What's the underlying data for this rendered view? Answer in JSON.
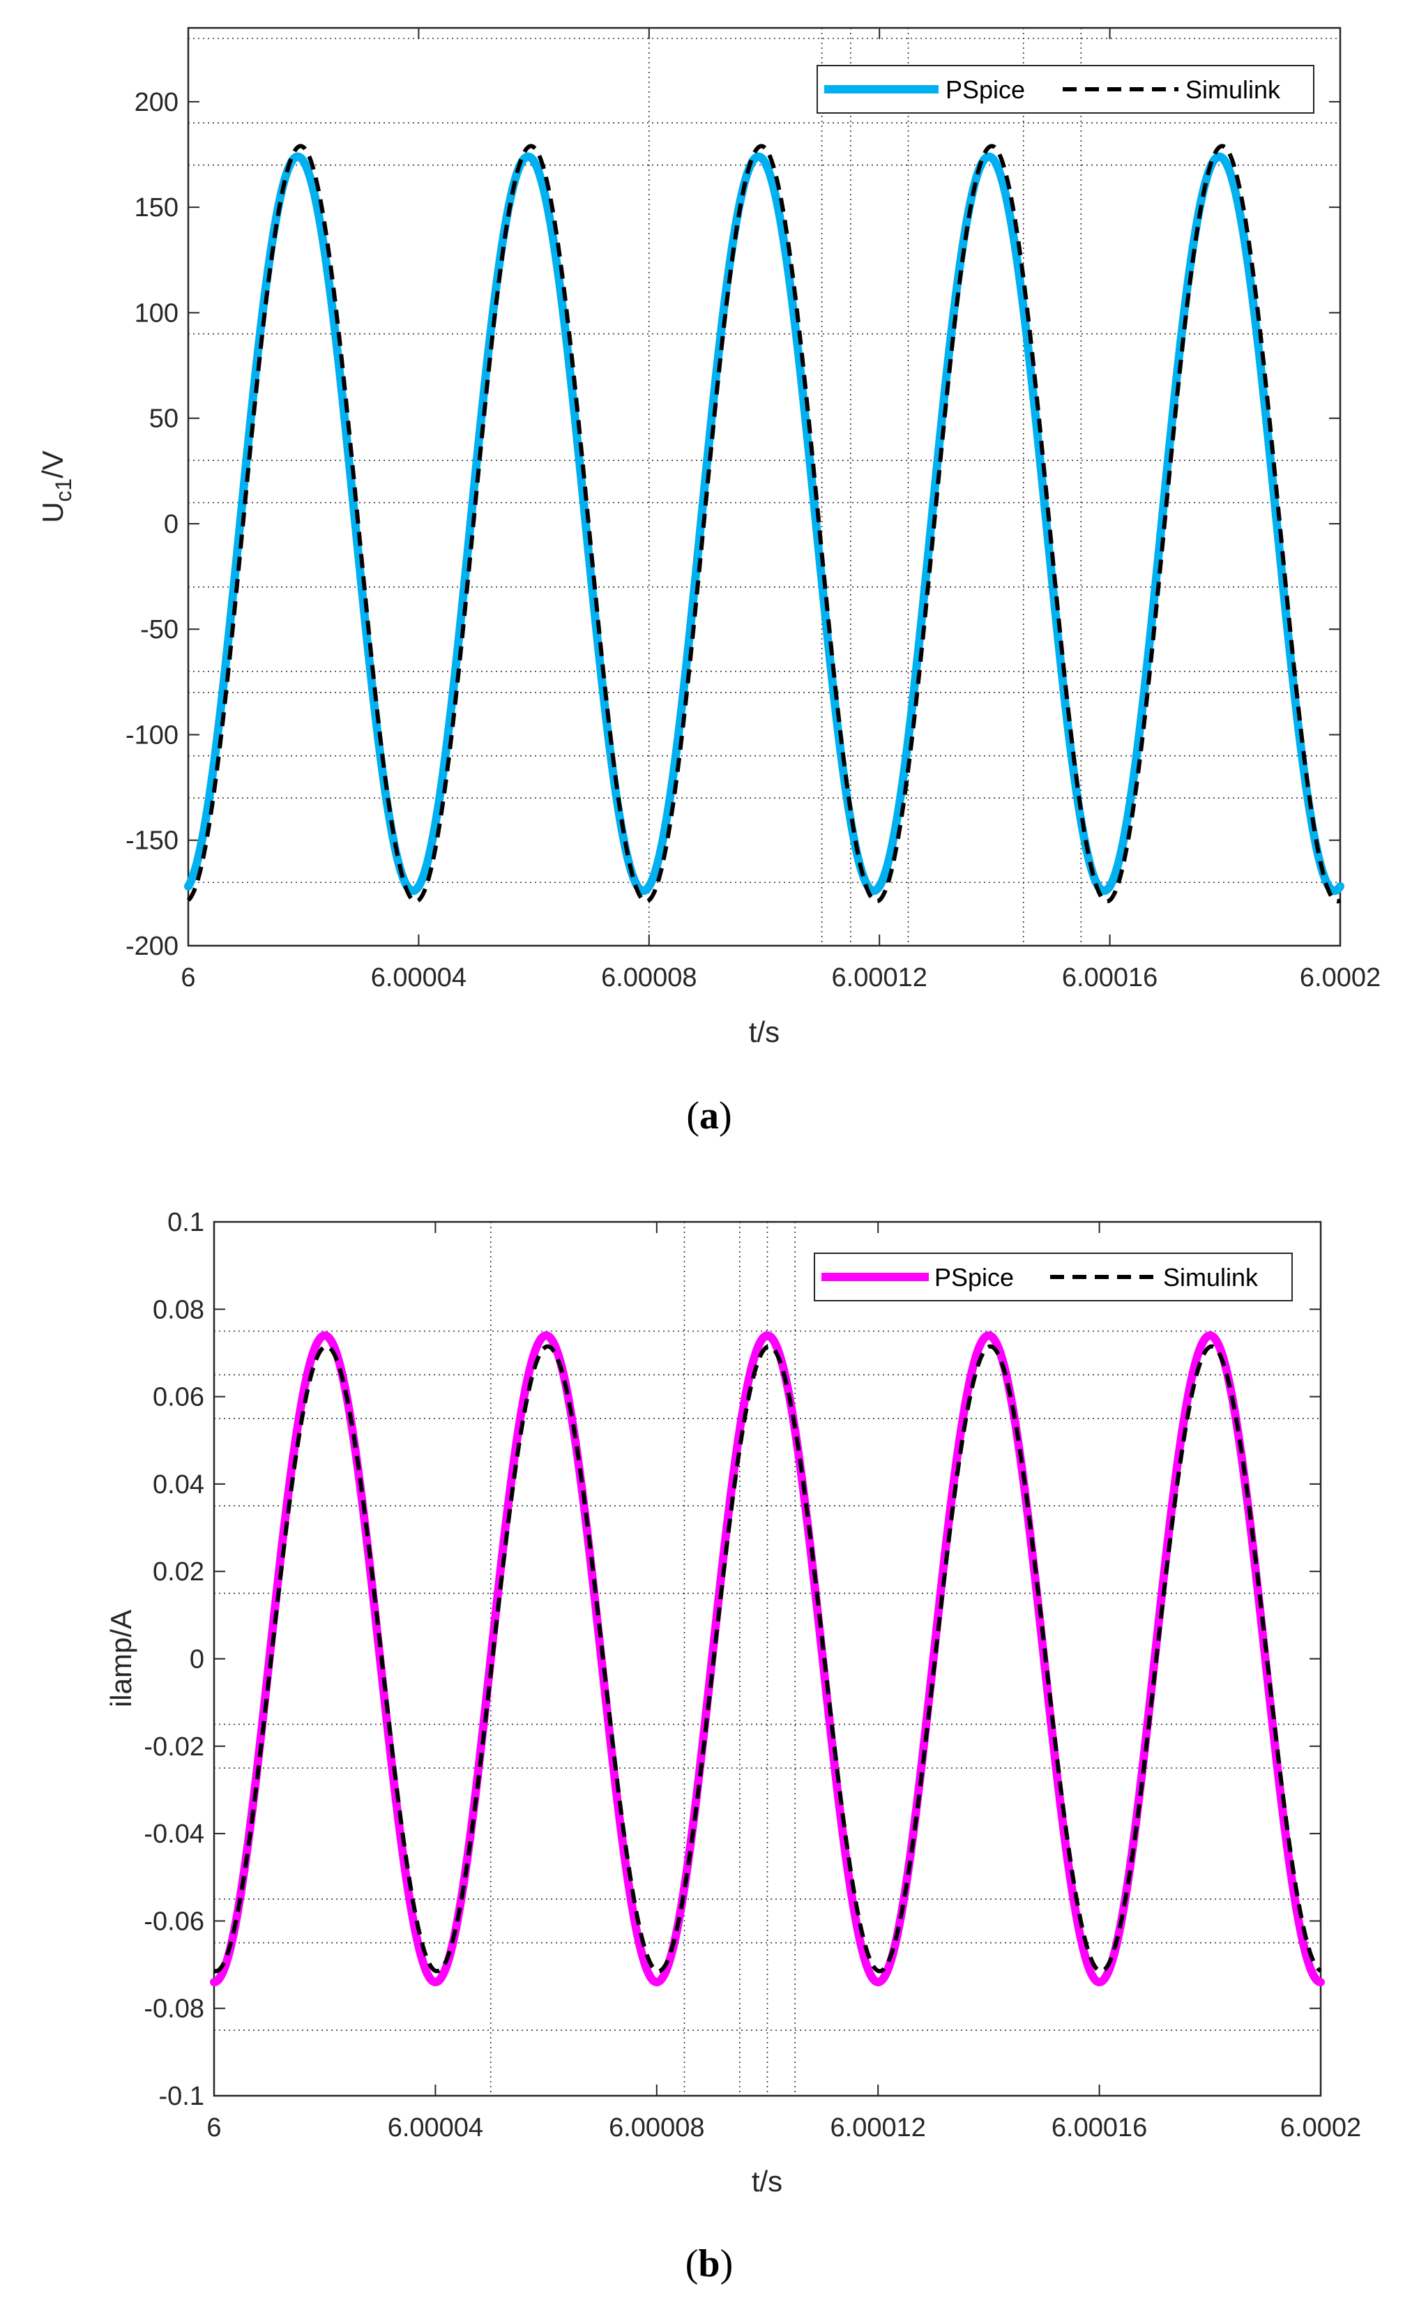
{
  "chart_data": [
    {
      "type": "line",
      "caption": "(a)",
      "caption_open": "(",
      "caption_letter": "a",
      "caption_close": ")",
      "xlabel": "t/s",
      "ylabel_main": "U",
      "ylabel_sub": "c1",
      "ylabel_tail": "/V",
      "xlim": [
        6.0,
        6.0002
      ],
      "ylim": [
        -200,
        235
      ],
      "xticks": [
        6.0,
        6.00004,
        6.00008,
        6.00012,
        6.00016,
        6.0002
      ],
      "xtick_labels": [
        "6",
        "6.00004",
        "6.00008",
        "6.00012",
        "6.00016",
        "6.0002"
      ],
      "yticks": [
        200,
        150,
        100,
        50,
        0,
        -50,
        -100,
        -150,
        -200
      ],
      "ytick_labels": [
        "200",
        "150",
        "100",
        "50",
        "0",
        "-50",
        "-100",
        "-150",
        "-200"
      ],
      "legend_position": "top-right",
      "dotted_hlines": [
        230,
        190,
        170,
        90,
        30,
        10,
        -30,
        -70,
        -80,
        -110,
        -130,
        -170
      ],
      "dotted_vlines": [
        6.00008,
        6.00011,
        6.000115,
        6.000125,
        6.000145,
        6.000155
      ],
      "series": [
        {
          "name": "PSpice",
          "color": "#00b0f0",
          "style": "solid",
          "amplitude": 174,
          "period": 4e-05,
          "peak_time": 6.000019,
          "time_offset": 0.0
        },
        {
          "name": "Simulink",
          "color": "#000000",
          "style": "dashed",
          "amplitude": 179,
          "period": 4e-05,
          "peak_time": 6.000019,
          "time_offset": 5e-07
        }
      ]
    },
    {
      "type": "line",
      "caption": "(b)",
      "caption_open": "(",
      "caption_letter": "b",
      "caption_close": ")",
      "xlabel": "t/s",
      "ylabel_main": "ilamp/A",
      "xlim": [
        6.0,
        6.0002
      ],
      "ylim": [
        -0.1,
        0.1
      ],
      "xticks": [
        6.0,
        6.00004,
        6.00008,
        6.00012,
        6.00016,
        6.0002
      ],
      "xtick_labels": [
        "6",
        "6.00004",
        "6.00008",
        "6.00012",
        "6.00016",
        "6.0002"
      ],
      "yticks": [
        0.1,
        0.08,
        0.06,
        0.04,
        0.02,
        0,
        -0.02,
        -0.04,
        -0.06,
        -0.08,
        -0.1
      ],
      "ytick_labels": [
        "0.1",
        "0.08",
        "0.06",
        "0.04",
        "0.02",
        "0",
        "-0.02",
        "-0.04",
        "-0.06",
        "-0.08",
        "-0.1"
      ],
      "legend_position": "top-right",
      "dotted_hlines": [
        0.075,
        0.065,
        0.055,
        0.035,
        0.015,
        -0.015,
        -0.025,
        -0.055,
        -0.065,
        -0.085
      ],
      "dotted_vlines": [
        6.00005,
        6.000085,
        6.000095,
        6.0001,
        6.000105
      ],
      "series": [
        {
          "name": "PSpice",
          "color": "#ff00ff",
          "style": "solid",
          "amplitude": 0.074,
          "period": 4e-05,
          "peak_time": 6.00002,
          "time_offset": 0.0
        },
        {
          "name": "Simulink",
          "color": "#000000",
          "style": "dashed",
          "amplitude": 0.0715,
          "period": 4e-05,
          "peak_time": 6.00002,
          "time_offset": 3e-07
        }
      ]
    }
  ]
}
